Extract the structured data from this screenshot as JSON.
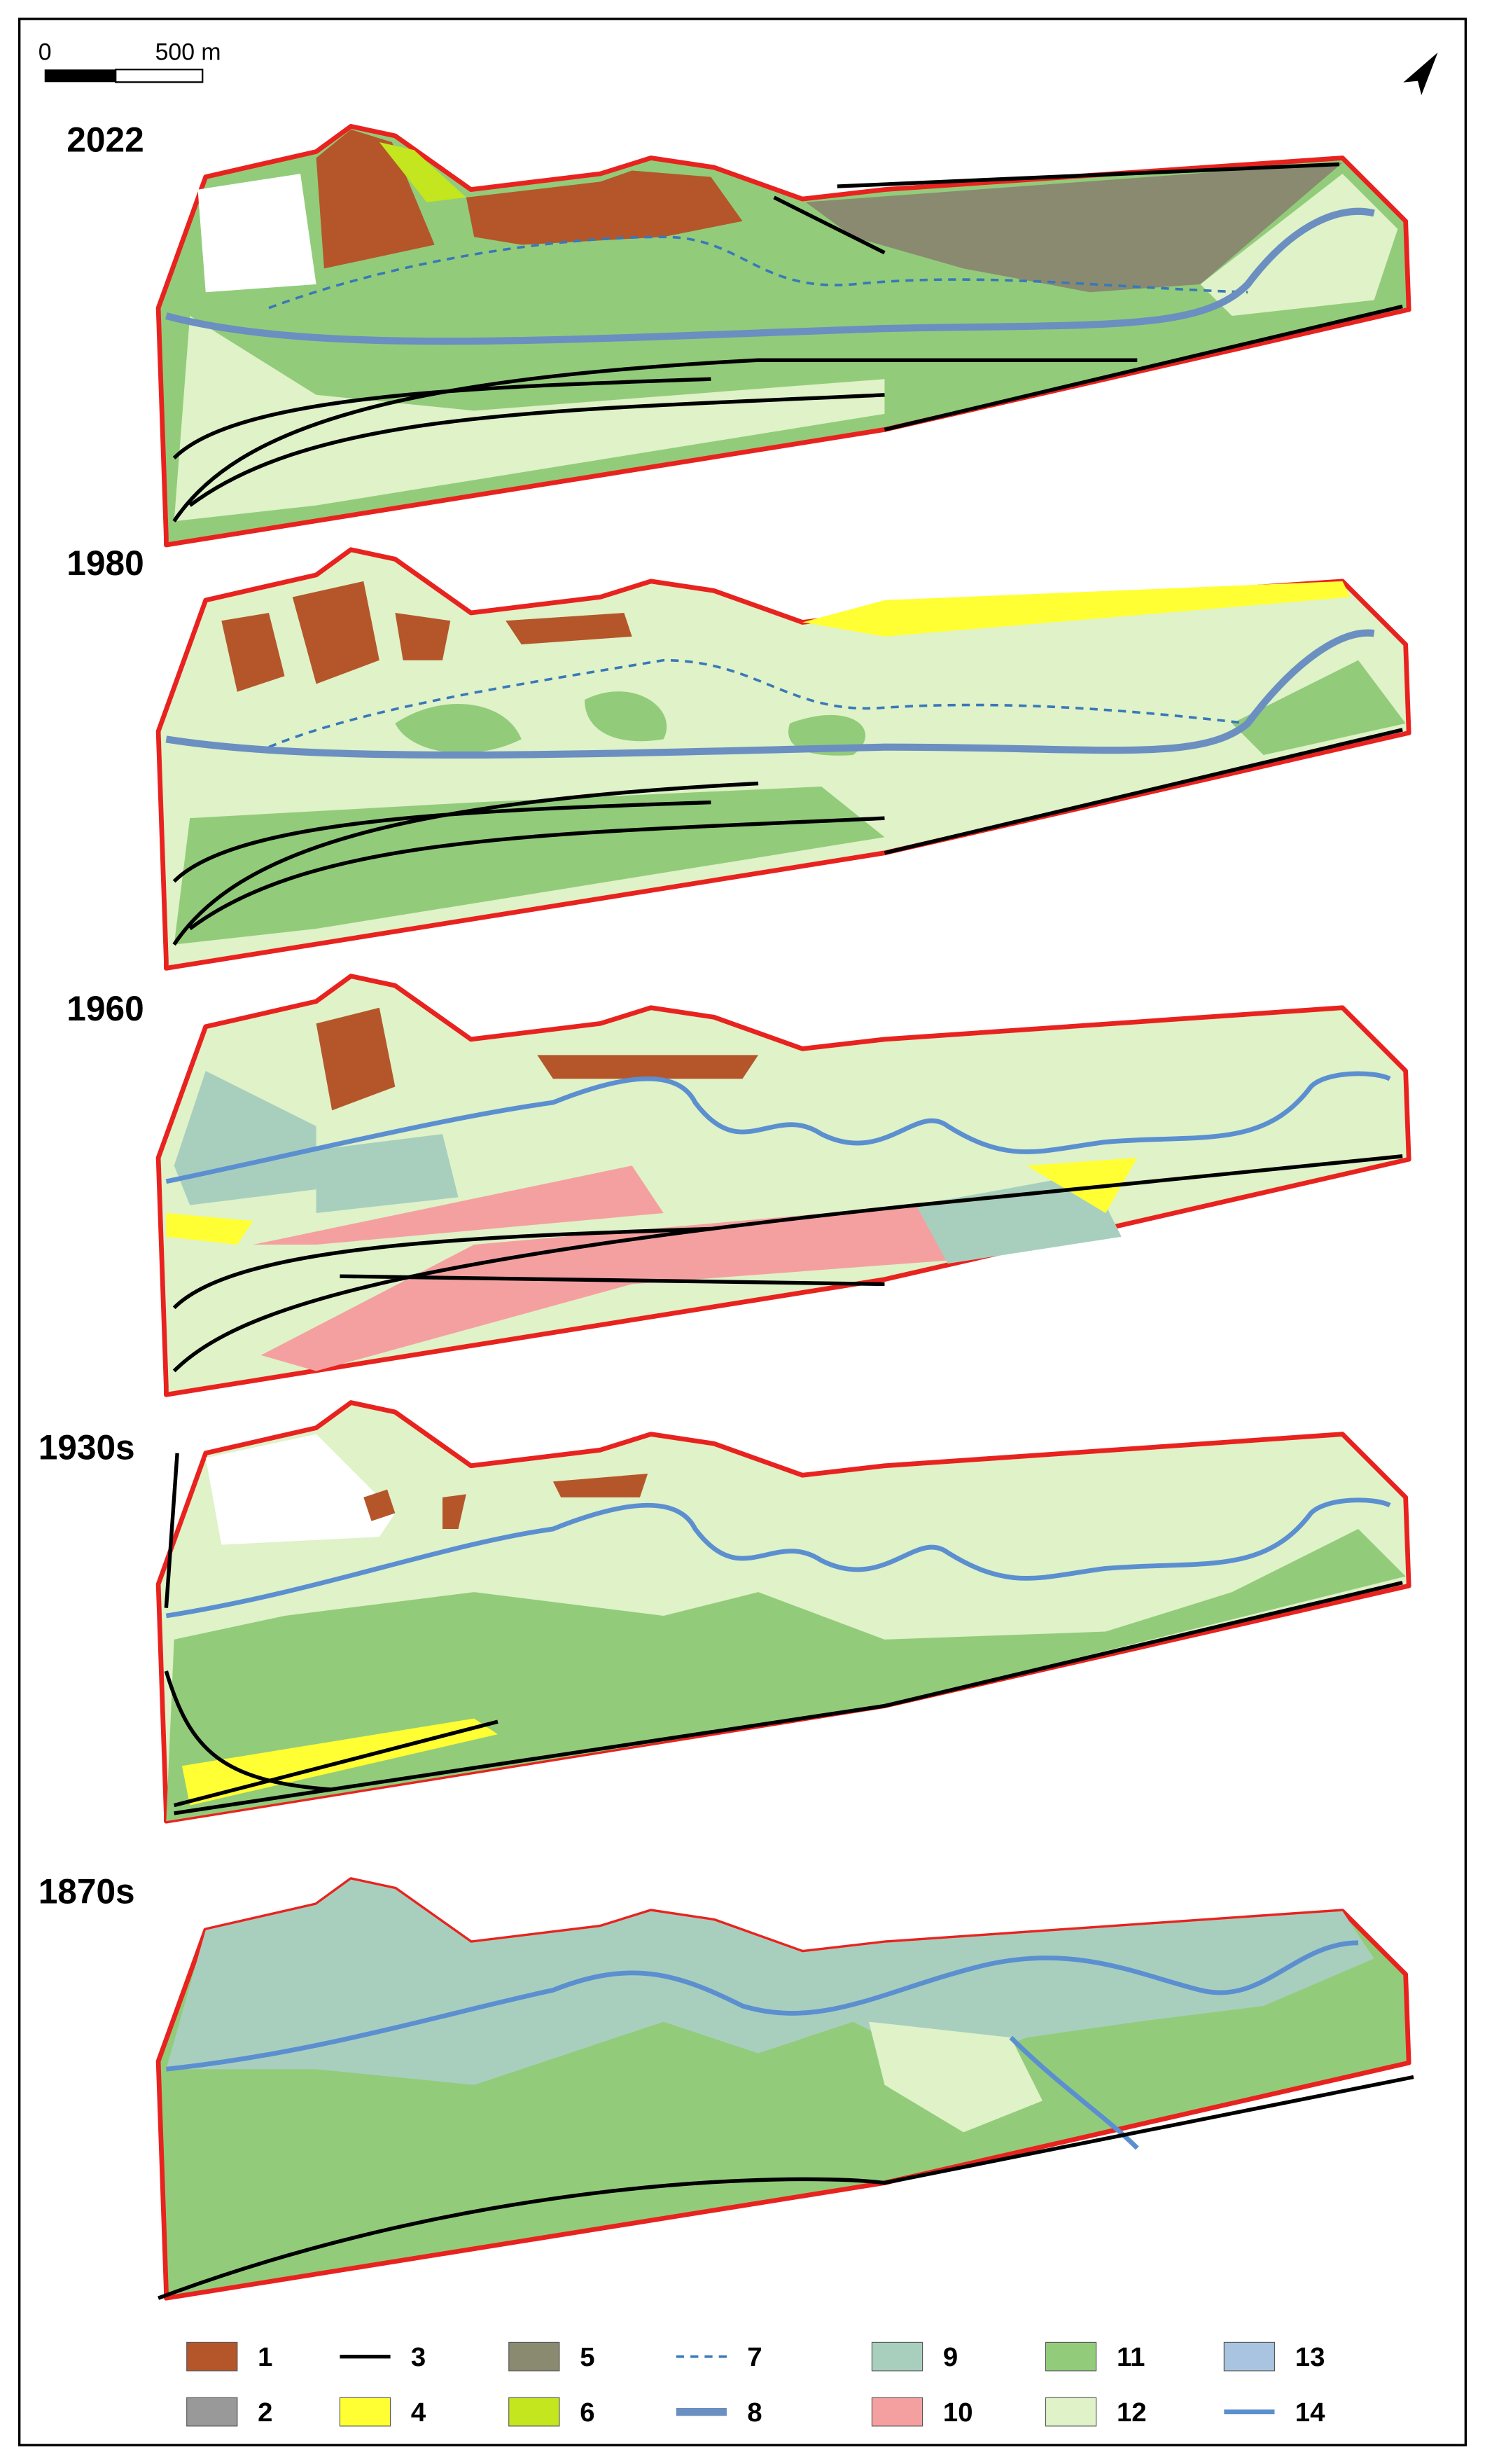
{
  "scale_bar": {
    "start": "0",
    "end": "500 m"
  },
  "panels": [
    {
      "year": "2022"
    },
    {
      "year": "1980"
    },
    {
      "year": "1960"
    },
    {
      "year": "1930s"
    },
    {
      "year": "1870s"
    }
  ],
  "legend": [
    {
      "label": "1"
    },
    {
      "label": "2"
    },
    {
      "label": "3"
    },
    {
      "label": "4"
    },
    {
      "label": "5"
    },
    {
      "label": "6"
    },
    {
      "label": "7"
    },
    {
      "label": "8"
    },
    {
      "label": "9"
    },
    {
      "label": "10"
    },
    {
      "label": "11"
    },
    {
      "label": "12"
    },
    {
      "label": "13"
    },
    {
      "label": "14"
    }
  ]
}
